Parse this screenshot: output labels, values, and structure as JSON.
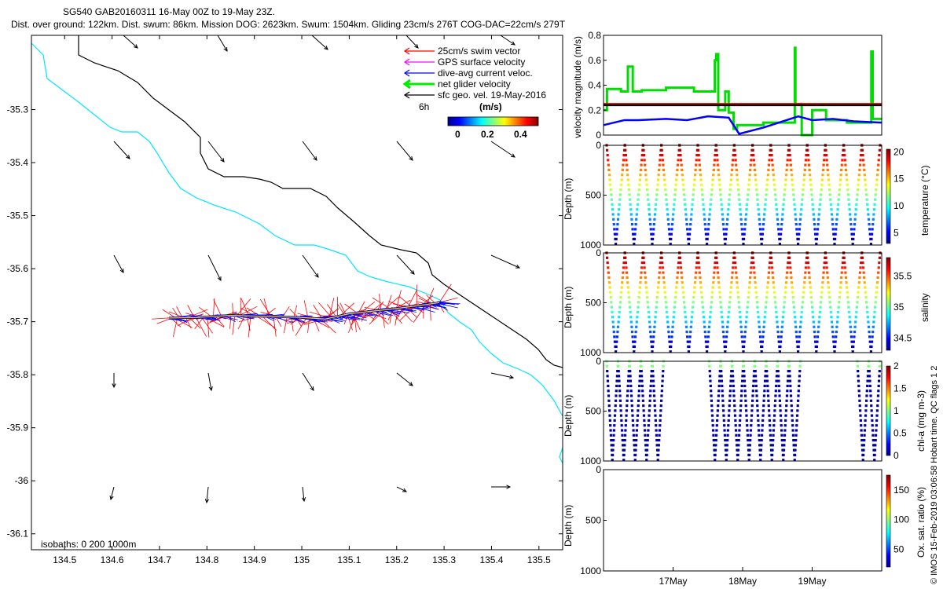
{
  "header": {
    "line1": "SG540 GAB20160311 16-May 00Z to 19-May 23Z.",
    "line2": "Dist. over ground: 122km. Dist. swum: 86km. Mission DOG: 2623km. Swum: 1504km. Gliding 23cm/s 276T COG-DAC=22cm/s 279T"
  },
  "footer_text": "© IMOS 15-Feb-2019 03:06:58 Hobart time. QC flags 1  2",
  "chart_data": [
    {
      "type": "scatter",
      "id": "map",
      "x_ticks": [
        "134.5",
        "134.6",
        "134.7",
        "134.8",
        "134.9",
        "135",
        "135.1",
        "135.2",
        "135.3",
        "135.4",
        "135.5"
      ],
      "y_ticks": [
        "-35.3",
        "-35.4",
        "-35.5",
        "-35.6",
        "-35.7",
        "-35.8",
        "-35.9",
        "-36",
        "-36.1"
      ],
      "xlim": [
        134.43,
        135.55
      ],
      "ylim": [
        -36.13,
        -35.16
      ],
      "legend": [
        "25cm/s swim vector",
        "GPS surface velocity",
        "dive-avg current veloc.",
        "net glider velocity",
        "sfc geo. vel. 19-May-2016"
      ],
      "legend_colors": [
        "#ff0000",
        "#ff00ff",
        "#0000ff",
        "#00ee00",
        "#000000"
      ],
      "legend_extra": "6h",
      "colorbar_title": "(m/s)",
      "colorbar_ticks": [
        "0",
        "0.2",
        "0.4"
      ],
      "isobath_label": "isobaths: 0   200   1000m",
      "isobath_colors": {
        "200m": "#00e5ff",
        "1000m": "#000000"
      },
      "track": [
        [
          134.72,
          -35.693
        ],
        [
          134.78,
          -35.692
        ],
        [
          134.85,
          -35.688
        ],
        [
          134.92,
          -35.69
        ],
        [
          135.0,
          -35.692
        ],
        [
          135.05,
          -35.695
        ],
        [
          135.1,
          -35.685
        ],
        [
          135.15,
          -35.68
        ],
        [
          135.2,
          -35.675
        ],
        [
          135.26,
          -35.668
        ],
        [
          135.29,
          -35.664
        ]
      ]
    },
    {
      "type": "line",
      "id": "velocity",
      "ylabel": "velocity magnitude (m/s)",
      "ylim": [
        0,
        0.8
      ],
      "y_ticks": [
        "0",
        "0.2",
        "0.4",
        "0.6",
        "0.8"
      ],
      "x_range_days": [
        16,
        20
      ],
      "series": [
        {
          "color": "#00dd00",
          "x": [
            16.0,
            16.05,
            16.05,
            16.25,
            16.25,
            16.35,
            16.35,
            16.42,
            16.42,
            16.55,
            16.55,
            16.9,
            16.9,
            17.3,
            17.3,
            17.6,
            17.6,
            17.62,
            17.62,
            17.65,
            17.65,
            17.75,
            17.75,
            17.8,
            17.8,
            17.87,
            17.87,
            17.92,
            17.92,
            18.3,
            18.3,
            18.75,
            18.75,
            18.76,
            18.76,
            18.85,
            18.85,
            19.0,
            19.0,
            19.2,
            19.2,
            19.5,
            19.5,
            19.85,
            19.85,
            19.87,
            19.87,
            20.0
          ],
          "y": [
            0.2,
            0.2,
            0.37,
            0.37,
            0.35,
            0.35,
            0.55,
            0.55,
            0.35,
            0.35,
            0.36,
            0.36,
            0.38,
            0.38,
            0.35,
            0.35,
            0.6,
            0.6,
            0.65,
            0.65,
            0.2,
            0.2,
            0.35,
            0.35,
            0.18,
            0.18,
            0.05,
            0.05,
            0.08,
            0.08,
            0.1,
            0.1,
            0.7,
            0.7,
            0.25,
            0.25,
            0.0,
            0.0,
            0.2,
            0.2,
            0.12,
            0.12,
            0.1,
            0.1,
            0.67,
            0.67,
            0.13,
            0.13
          ]
        },
        {
          "color": "#ff0000",
          "x": [
            16.0,
            20.0
          ],
          "y": [
            0.25,
            0.25
          ]
        },
        {
          "color": "#000000",
          "x": [
            16.0,
            20.0
          ],
          "y": [
            0.24,
            0.24
          ]
        },
        {
          "color": "#0000ff",
          "x": [
            16.0,
            16.3,
            16.5,
            16.9,
            17.2,
            17.5,
            17.8,
            17.95,
            18.3,
            18.8,
            19.0,
            19.3,
            19.6,
            20.0
          ],
          "y": [
            0.08,
            0.12,
            0.12,
            0.13,
            0.12,
            0.15,
            0.14,
            0.01,
            0.06,
            0.15,
            0.12,
            0.13,
            0.11,
            0.1
          ]
        }
      ]
    },
    {
      "type": "scatter",
      "id": "temperature",
      "ylabel": "Depth (m)",
      "ylim": [
        0,
        1000
      ],
      "y_ticks": [
        "0",
        "500",
        "1000"
      ],
      "colorbar_label": "temperature (°C)",
      "colorbar_ticks": [
        "5",
        "10",
        "15",
        "20"
      ],
      "clim": [
        3,
        20.5
      ],
      "n_dives": 15
    },
    {
      "type": "scatter",
      "id": "salinity",
      "ylabel": "Depth (m)",
      "ylim": [
        0,
        1000
      ],
      "y_ticks": [
        "0",
        "500",
        "1000"
      ],
      "colorbar_label": "salinity",
      "colorbar_ticks": [
        "34.5",
        "35",
        "35.5"
      ],
      "clim": [
        34.3,
        35.8
      ],
      "n_dives": 15
    },
    {
      "type": "scatter",
      "id": "chla",
      "ylabel": "Depth (m)",
      "ylim": [
        0,
        1000
      ],
      "y_ticks": [
        "0",
        "500",
        "1000"
      ],
      "colorbar_label": "chl-a (mg m-3)",
      "colorbar_ticks": [
        "0",
        "0.5",
        "1",
        "1.5",
        "2"
      ],
      "clim": [
        0,
        2
      ],
      "dive_groups": [
        [
          0,
          1,
          2,
          3,
          4
        ],
        [
          9,
          10,
          11,
          12,
          13,
          14,
          15,
          16
        ],
        [
          22,
          23
        ]
      ]
    },
    {
      "type": "scatter",
      "id": "oxygen",
      "ylabel": "Depth (m)",
      "ylim": [
        0,
        1000
      ],
      "y_ticks": [
        "0",
        "500",
        "1000"
      ],
      "colorbar_label": "Ox. sat. ratio (%)",
      "colorbar_ticks": [
        "50",
        "100",
        "150"
      ],
      "clim": [
        20,
        175
      ],
      "x_ticks": [
        "17May",
        "18May",
        "19May"
      ]
    }
  ]
}
